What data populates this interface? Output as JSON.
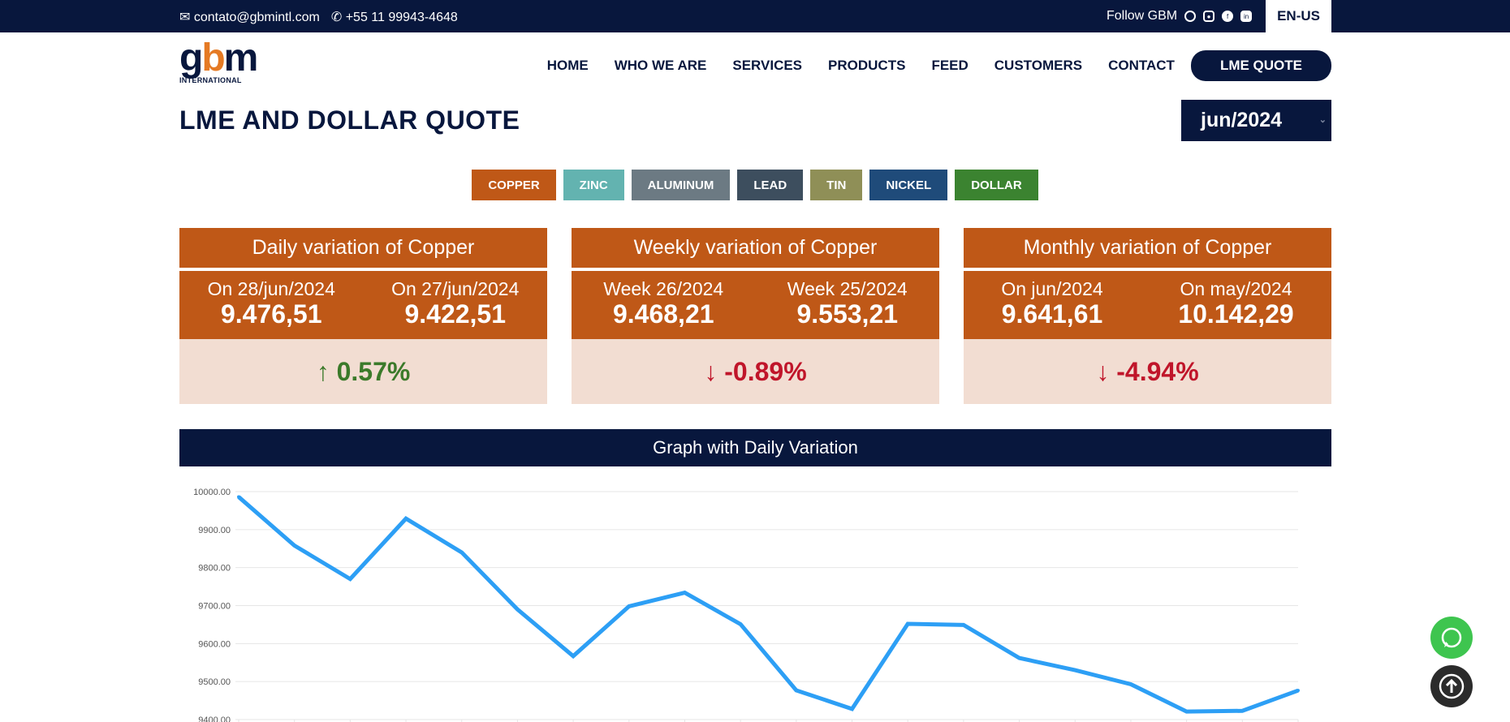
{
  "topbar": {
    "email": "contato@gbmintl.com",
    "phone": "+55 11 99943-4648",
    "follow": "Follow GBM",
    "language": "EN-US",
    "social": [
      "whatsapp-icon",
      "instagram-icon",
      "facebook-icon",
      "linkedin-icon"
    ]
  },
  "logo": {
    "text": "gbm",
    "subtitle": "INTERNATIONAL"
  },
  "nav": {
    "items": [
      "HOME",
      "WHO WE ARE",
      "SERVICES",
      "PRODUCTS",
      "FEED",
      "CUSTOMERS",
      "CONTACT"
    ],
    "cta": "LME QUOTE"
  },
  "page": {
    "title": "LME AND DOLLAR QUOTE",
    "month_select": "jun/2024"
  },
  "metals": [
    {
      "label": "COPPER",
      "color": "#bf5817"
    },
    {
      "label": "ZINC",
      "color": "#63b3b0"
    },
    {
      "label": "ALUMINUM",
      "color": "#6c7a83"
    },
    {
      "label": "LEAD",
      "color": "#3d4e5e"
    },
    {
      "label": "TIN",
      "color": "#8f8f57"
    },
    {
      "label": "NICKEL",
      "color": "#1f4b7a"
    },
    {
      "label": "DOLLAR",
      "color": "#3b8330"
    }
  ],
  "cards": [
    {
      "title": "Daily variation of Copper",
      "a_label": "On 28/jun/2024",
      "a_value": "9.476,51",
      "b_label": "On 27/jun/2024",
      "b_value": "9.422,51",
      "variation": "↑ 0.57%",
      "direction": "up"
    },
    {
      "title": "Weekly variation of Copper",
      "a_label": "Week 26/2024",
      "a_value": "9.468,21",
      "b_label": "Week 25/2024",
      "b_value": "9.553,21",
      "variation": "↓ -0.89%",
      "direction": "down"
    },
    {
      "title": "Monthly variation of Copper",
      "a_label": "On jun/2024",
      "a_value": "9.641,61",
      "b_label": "On may/2024",
      "b_value": "10.142,29",
      "variation": "↓ -4.94%",
      "direction": "down"
    }
  ],
  "graph": {
    "title": "Graph with Daily Variation"
  },
  "chart_data": {
    "type": "line",
    "title": "",
    "xlabel": "",
    "ylabel": "",
    "ylim": [
      9400,
      10000
    ],
    "yticks": [
      "10000.00",
      "9900.00",
      "9800.00",
      "9700.00",
      "9600.00",
      "9500.00",
      "9400.00"
    ],
    "grid": true,
    "line_color": "#2d9ff5",
    "series": [
      {
        "values": [
          9986,
          9858,
          9770,
          9929,
          9840,
          9690,
          9567,
          9698,
          9734,
          9651,
          9477,
          9428,
          9652,
          9649,
          9562,
          9530,
          9493,
          9421,
          9423,
          9476.51
        ]
      }
    ]
  }
}
